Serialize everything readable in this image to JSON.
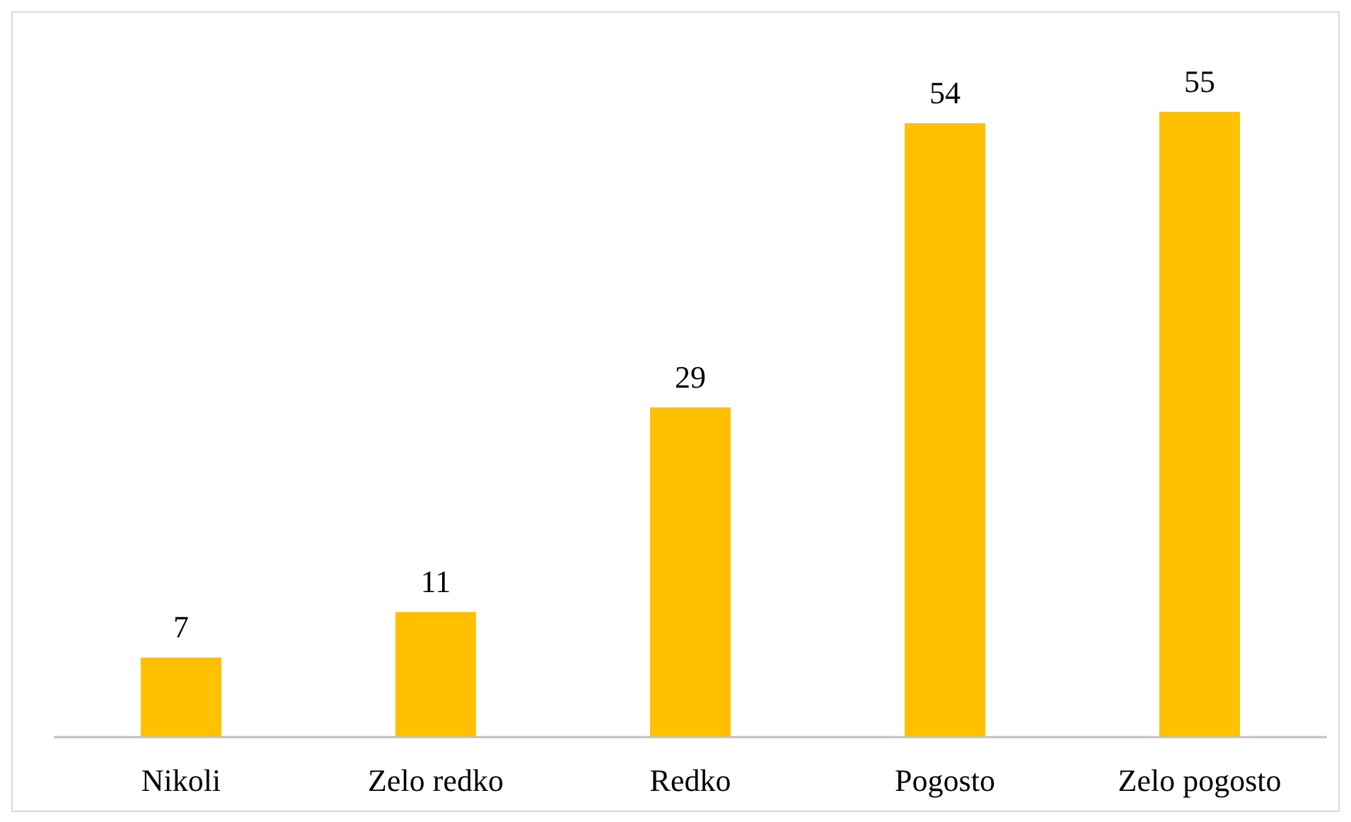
{
  "chart_data": {
    "type": "bar",
    "categories": [
      "Nikoli",
      "Zelo redko",
      "Redko",
      "Pogosto",
      "Zelo pogosto"
    ],
    "values": [
      7,
      11,
      29,
      54,
      55
    ],
    "color": "#ffc000",
    "data_labels": true
  }
}
